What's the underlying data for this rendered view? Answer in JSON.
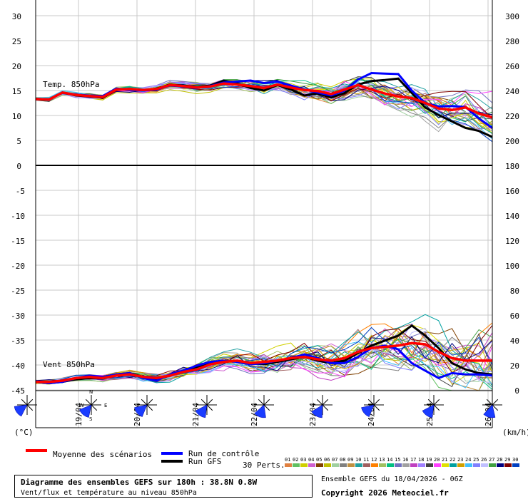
{
  "chart_data": {
    "type": "line",
    "top_panel": {
      "label": "Temp. 850hPa",
      "left_ticks": [
        "30",
        "25",
        "20",
        "15",
        "10",
        "5",
        "0"
      ],
      "right_ticks": [
        "300",
        "280",
        "260",
        "240",
        "220",
        "200",
        "180"
      ]
    },
    "bottom_panel": {
      "label": "Vent 850hPa",
      "left_ticks": [
        "-5",
        "-10",
        "-15",
        "-20",
        "-25",
        "-30",
        "-35",
        "-40",
        "-45"
      ],
      "right_ticks": [
        "160",
        "140",
        "120",
        "100",
        "80",
        "60",
        "40",
        "20",
        "0"
      ]
    },
    "left_unit": "(°C)",
    "right_unit": "(km/h)",
    "dates": [
      "19/04",
      "20/04",
      "21/04",
      "22/04",
      "23/04",
      "24/04",
      "25/04",
      "26/04"
    ],
    "series": [
      {
        "name": "Moyenne des scénarios",
        "color": "#ff0000",
        "temp": [
          13.3,
          13.2,
          14.6,
          14.1,
          13.9,
          13.7,
          15.2,
          15.3,
          15.1,
          15.3,
          16.1,
          15.9,
          15.6,
          15.8,
          16.4,
          16.2,
          15.9,
          15.5,
          16.2,
          15.6,
          15.1,
          14.9,
          14.3,
          15.2,
          16.1,
          15.2,
          14.4,
          13.8,
          13.5,
          12.5,
          11.4,
          11.1,
          11.6,
          10.4,
          9.6
        ],
        "wind": [
          7,
          7,
          8,
          10,
          11,
          10,
          12,
          13,
          11,
          10,
          12,
          15,
          17,
          21,
          23,
          24,
          22,
          23,
          24,
          26,
          27,
          25,
          24,
          26,
          31,
          34,
          35,
          36,
          38,
          37,
          31,
          26,
          24,
          24,
          24
        ]
      },
      {
        "name": "Run de contrôle",
        "color": "#0000ff",
        "temp": [
          13.3,
          13.2,
          14.6,
          14.2,
          14.0,
          13.9,
          15.4,
          15.1,
          15.0,
          15.2,
          16.0,
          15.8,
          15.5,
          15.9,
          16.6,
          16.8,
          17.0,
          16.5,
          16.8,
          16.0,
          15.2,
          14.6,
          14.0,
          15.0,
          17.2,
          18.5,
          18.4,
          18.3,
          15.0,
          12.5,
          11.8,
          11.9,
          11.7,
          9.4,
          7.5
        ],
        "wind": [
          7,
          6,
          7,
          10,
          12,
          11,
          13,
          14,
          10,
          8,
          13,
          16,
          20,
          23,
          24,
          23,
          21,
          22,
          24,
          26,
          29,
          26,
          22,
          22,
          27,
          34,
          36,
          33,
          22,
          16,
          10,
          14,
          13,
          13,
          12
        ]
      },
      {
        "name": "Run GFS",
        "color": "#000000",
        "temp": [
          13.3,
          13.2,
          14.6,
          14.0,
          13.8,
          13.6,
          15.3,
          15.2,
          15.0,
          15.4,
          16.2,
          16.0,
          15.7,
          16.0,
          16.9,
          16.4,
          15.5,
          15.0,
          16.1,
          15.2,
          14.0,
          14.4,
          13.6,
          14.5,
          16.2,
          16.9,
          17.1,
          17.4,
          14.5,
          11.6,
          10.1,
          8.8,
          7.5,
          6.9,
          5.7
        ],
        "wind": [
          7,
          6,
          7,
          9,
          10,
          11,
          13,
          14,
          11,
          9,
          12,
          16,
          19,
          22,
          23,
          24,
          22,
          21,
          23,
          25,
          27,
          24,
          22,
          24,
          30,
          36,
          40,
          44,
          52,
          44,
          34,
          22,
          17,
          14,
          13
        ]
      }
    ],
    "perturbations_label": "30 Perts.",
    "perturbation_ids": [
      "01",
      "02",
      "03",
      "04",
      "05",
      "06",
      "07",
      "08",
      "09",
      "10",
      "11",
      "12",
      "13",
      "14",
      "15",
      "16",
      "17",
      "18",
      "19",
      "20",
      "21",
      "22",
      "23",
      "24",
      "25",
      "26",
      "27",
      "28",
      "29",
      "30"
    ],
    "perturbation_colors": [
      "#e08040",
      "#60c060",
      "#d0d000",
      "#d060d0",
      "#804000",
      "#c0c000",
      "#a0d0a0",
      "#808080",
      "#c09040",
      "#20a0a0",
      "#a06060",
      "#ff8000",
      "#a0c060",
      "#00c080",
      "#7070c0",
      "#a0a0a0",
      "#c040c0",
      "#a080ff",
      "#404040",
      "#ff40ff",
      "#e0e000",
      "#00a0a0",
      "#d0a000",
      "#40c0ff",
      "#8080ff",
      "#c0c0ff",
      "#40a040",
      "#000080",
      "#800000",
      "#0040c0"
    ],
    "wind_directions_deg": [
      235,
      220,
      230,
      215,
      200,
      210,
      230,
      215,
      195
    ]
  },
  "footer": {
    "title": "Diagramme des ensembles GEFS sur 180h : 38.8N 0.8W",
    "subtitle": "Vent/flux et température au niveau 850hPa",
    "ensemble": "Ensemble GEFS du 18/04/2026 - 06Z",
    "copyright": "Copyright 2026 Meteociel.fr"
  },
  "compass": {
    "n": "N",
    "s": "S",
    "e": "E",
    "w": "W"
  }
}
